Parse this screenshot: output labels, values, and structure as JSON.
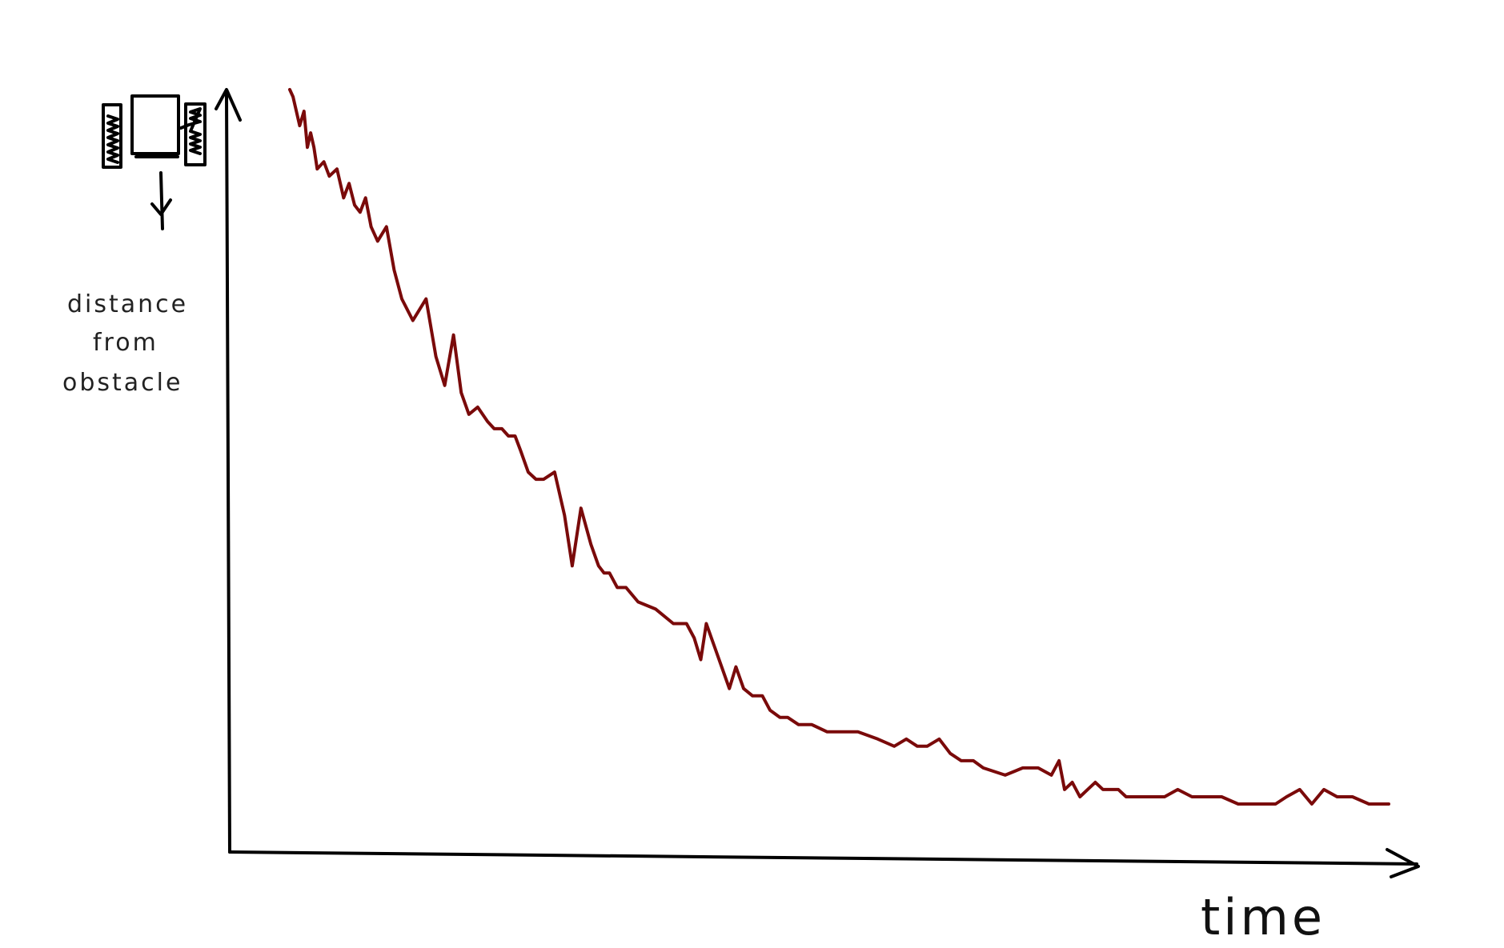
{
  "chart_data": {
    "type": "line",
    "xlabel": "time",
    "ylabel_lines": [
      "distance",
      "from",
      "obstacle"
    ],
    "xlim": [
      0,
      100
    ],
    "ylim": [
      0,
      100
    ],
    "grid": false,
    "series": [
      {
        "color": "#7a0a0a",
        "x": [
          0,
          0.3,
          0.9,
          1.3,
          1.6,
          1.9,
          2.2,
          2.5,
          3.1,
          3.6,
          4.3,
          4.9,
          5.4,
          5.9,
          6.4,
          6.9,
          7.4,
          8.0,
          8.8,
          9.5,
          10.2,
          11.2,
          12.4,
          13.3,
          14.1,
          14.9,
          15.6,
          16.3,
          17.1,
          18.0,
          18.6,
          19.3,
          19.9,
          20.5,
          21.0,
          21.7,
          22.4,
          23.1,
          24.1,
          25.0,
          25.7,
          26.5,
          27.4,
          28.1,
          28.6,
          29.1,
          29.8,
          30.6,
          31.7,
          33.3,
          34.9,
          36.1,
          36.8,
          37.4,
          37.9,
          38.6,
          39.3,
          40.0,
          40.6,
          41.3,
          42.1,
          43.0,
          43.7,
          44.6,
          45.3,
          46.3,
          47.5,
          48.9,
          50.3,
          51.7,
          53.5,
          55.0,
          56.1,
          57.1,
          58.0,
          59.1,
          60.1,
          61.1,
          62.2,
          63.1,
          65.1,
          66.7,
          68.1,
          69.3,
          70.0,
          70.5,
          71.2,
          71.9,
          72.6,
          73.3,
          74.0,
          74.8,
          75.4,
          76.1,
          77.0,
          78.3,
          79.6,
          80.8,
          82.1,
          83.3,
          84.8,
          86.3,
          87.6,
          88.7,
          89.7,
          90.7,
          91.9,
          93.0,
          94.1,
          95.3,
          96.7,
          98.2,
          100
        ],
        "values": [
          100,
          99,
          95,
          97,
          92,
          94,
          92,
          89,
          90,
          88,
          89,
          85,
          87,
          84,
          83,
          85,
          81,
          79,
          81,
          75,
          71,
          68,
          71,
          63,
          59,
          66,
          58,
          55,
          56,
          54,
          53,
          53,
          52,
          52,
          50,
          47,
          46,
          46,
          47,
          41,
          34,
          42,
          37,
          34,
          33,
          33,
          31,
          31,
          29,
          28,
          26,
          26,
          24,
          21,
          26,
          23,
          20,
          17,
          20,
          17,
          16,
          16,
          14,
          13,
          13,
          12,
          12,
          11,
          11,
          11,
          10,
          9,
          10,
          9,
          9,
          10,
          8,
          7,
          7,
          6,
          5,
          6,
          6,
          5,
          7,
          3,
          4,
          2,
          3,
          4,
          3,
          3,
          3,
          2,
          2,
          2,
          2,
          3,
          2,
          2,
          2,
          1,
          1,
          1,
          1,
          2,
          3,
          1,
          3,
          2,
          2,
          1,
          1
        ]
      }
    ]
  },
  "icon": "wall-sensor-device-icon"
}
